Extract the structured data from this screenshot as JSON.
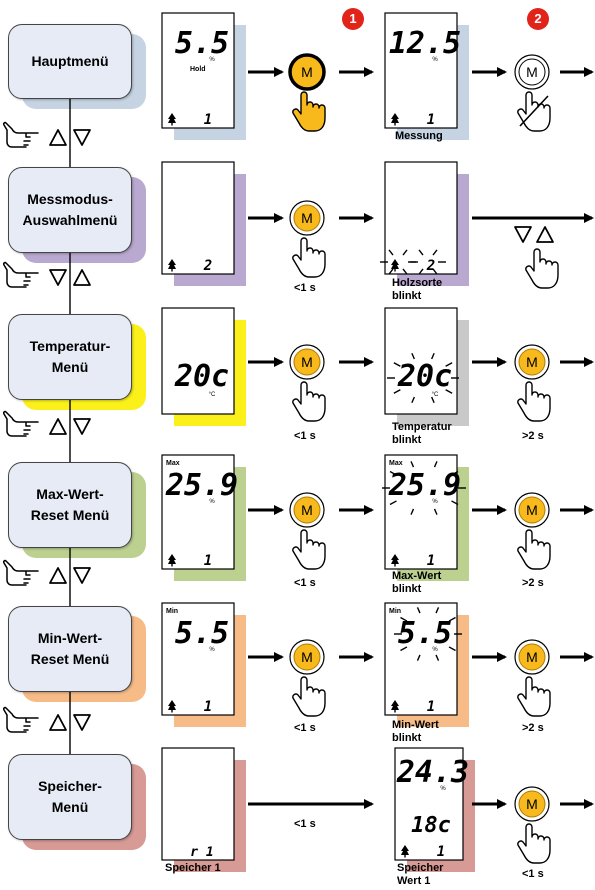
{
  "badges": [
    "1",
    "2"
  ],
  "menus": [
    {
      "id": "hauptmenue",
      "lines": [
        "Hauptmenü"
      ],
      "shadow": "#c5d3e3"
    },
    {
      "id": "messmodus",
      "lines": [
        "Messmodus-",
        "Auswahlmenü"
      ],
      "shadow": "#b9a8d0"
    },
    {
      "id": "temperatur",
      "lines": [
        "Temperatur-",
        "Menü"
      ],
      "shadow": "#fbf01a"
    },
    {
      "id": "maxwert",
      "lines": [
        "Max-Wert-",
        "Reset Menü"
      ],
      "shadow": "#bcd08f"
    },
    {
      "id": "minwert",
      "lines": [
        "Min-Wert-",
        "Reset Menü"
      ],
      "shadow": "#f7bb88"
    },
    {
      "id": "speicher",
      "lines": [
        "Speicher-",
        "Menü"
      ],
      "shadow": "#d79a95"
    }
  ],
  "displays": {
    "r1_left": {
      "main": "5.5",
      "unit": "%",
      "tag": "Hold",
      "footer": "1"
    },
    "r1_right": {
      "main": "12.5",
      "unit": "%",
      "footer": "1"
    },
    "r2_left": {
      "footer": "2"
    },
    "r2_right": {
      "footer": "2"
    },
    "r3_left": {
      "main": "20c",
      "unit": "°C"
    },
    "r3_right": {
      "main": "20c",
      "unit": "°C"
    },
    "r4_left": {
      "tag": "Max",
      "main": "25.9",
      "unit": "%",
      "footer": "1"
    },
    "r4_right": {
      "tag": "Max",
      "main": "25.9",
      "unit": "%",
      "footer": "1"
    },
    "r5_left": {
      "tag": "Min",
      "main": "5.5",
      "unit": "%",
      "footer": "1"
    },
    "r5_right": {
      "tag": "Min",
      "main": "5.5",
      "unit": "%",
      "footer": "1"
    },
    "r6_left": {
      "footer": "r 1"
    },
    "r6_right": {
      "main": "24.3",
      "unit": "%",
      "sub": "18c",
      "footer": "1"
    }
  },
  "button_label": "M",
  "captions": {
    "messung": "Messung",
    "lt1s": "<1 s",
    "gt2s": ">2 s",
    "holzsorte": [
      "Holzsorte",
      "blinkt"
    ],
    "temperatur": [
      "Temperatur",
      "blinkt"
    ],
    "maxwert": [
      "Max-Wert",
      "blinkt"
    ],
    "minwert": [
      "Min-Wert",
      "blinkt"
    ],
    "speicher1": "Speicher 1",
    "speicherwert": [
      "Speicher",
      "Wert 1"
    ]
  },
  "colors": {
    "button_fill": "#f7b91c",
    "button_ring": "#b07a00",
    "badge": "#e2231a",
    "menu_fill": "#e6ebf6"
  },
  "icons": [
    "hand-pointer-icon",
    "hand-press-icon",
    "hand-crossed-icon",
    "up-triangle-icon",
    "down-triangle-icon",
    "arrow-right-icon",
    "tree-icon"
  ]
}
